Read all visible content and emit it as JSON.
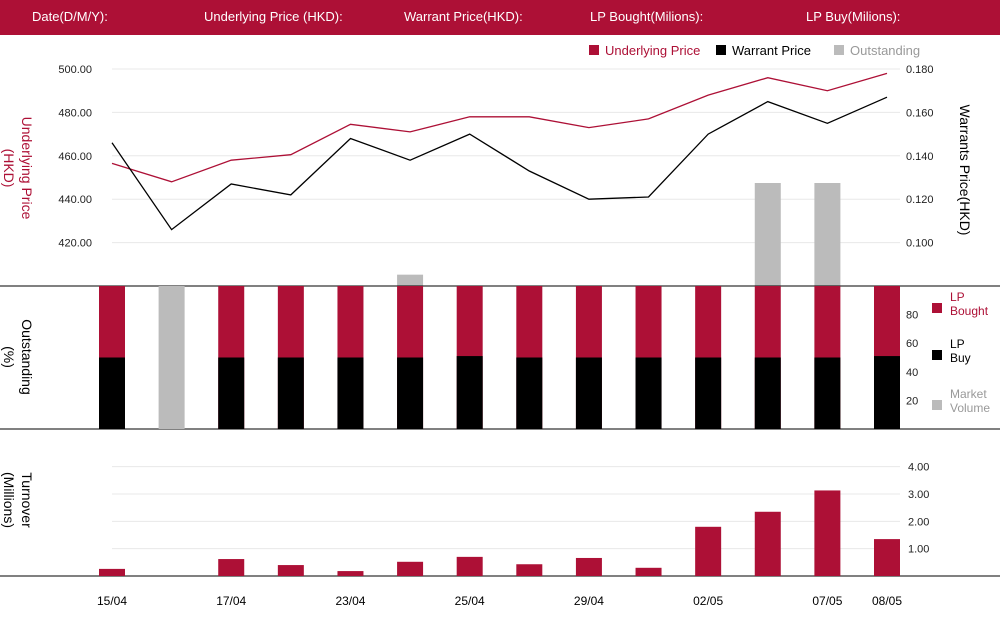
{
  "header": {
    "date_label": "Date(D/M/Y):",
    "underlying_label": "Underlying Price (HKD):",
    "warrant_label": "Warrant  Price(HKD):",
    "lp_bought_label": "LP Bought(Milions):",
    "lp_buy_label": "LP Buy(Milions):"
  },
  "colors": {
    "brand": "#ad1036",
    "warrant": "#000000",
    "outstanding": "#bbbbbb"
  },
  "chart_data": [
    {
      "type": "line",
      "legend": [
        "Underlying Price",
        "Warrant  Price",
        "Outstanding"
      ],
      "legend_position": "top-right",
      "ylabel_left": "Underlying Price (HKD)",
      "ylabel_right": "Warrants  Price(HKD)",
      "left_ticks": [
        "500.00",
        "480.00",
        "460.00",
        "440.00",
        "420.00"
      ],
      "right_ticks": [
        "0.180",
        "0.160",
        "0.140",
        "0.120",
        "0.100"
      ],
      "ylim_left": [
        400,
        506
      ],
      "ylim_right": [
        0.08,
        0.186
      ],
      "series": [
        {
          "name": "Underlying Price",
          "axis": "left",
          "values": [
            456.5,
            448,
            458,
            460.5,
            474.5,
            471,
            478,
            478,
            473,
            477,
            488,
            496,
            490,
            498
          ]
        },
        {
          "name": "Warrant  Price",
          "axis": "right",
          "values": [
            0.146,
            0.106,
            0.127,
            0.122,
            0.148,
            0.138,
            0.15,
            0.133,
            0.12,
            0.121,
            0.15,
            0.165,
            0.155,
            0.167
          ]
        },
        {
          "name": "Outstanding",
          "kind": "bar",
          "values": [
            0,
            0,
            0,
            0,
            0,
            5.5,
            0,
            0,
            0,
            0,
            0,
            50,
            50,
            0
          ]
        }
      ]
    },
    {
      "type": "bar",
      "ylabel": "Outstanding (%)",
      "y_ticks": [
        "80",
        "60",
        "40",
        "20"
      ],
      "ylim": [
        0,
        100
      ],
      "legend": [
        "LP Bought",
        "LP Buy",
        "Market Volume"
      ],
      "legend_position": "right",
      "series": [
        {
          "name": "LP Bought",
          "values": [
            100,
            0,
            100,
            100,
            100,
            100,
            100,
            100,
            100,
            100,
            100,
            100,
            100,
            100
          ]
        },
        {
          "name": "LP Buy",
          "values": [
            50,
            0,
            50,
            50,
            50,
            50,
            51,
            50,
            50,
            50,
            50,
            50,
            50,
            51
          ]
        },
        {
          "name": "Market Volume",
          "values": [
            0,
            100,
            0,
            0,
            0,
            0,
            0,
            0,
            0,
            0,
            0,
            0,
            0,
            0
          ]
        }
      ]
    },
    {
      "type": "bar",
      "ylabel": "Turnover (Millions)",
      "y_ticks": [
        "4.00",
        "3.00",
        "2.00",
        "1.00"
      ],
      "ylim": [
        0,
        4.5
      ],
      "series": [
        {
          "name": "Turnover",
          "values": [
            0.26,
            0,
            0.62,
            0.4,
            0.18,
            0.52,
            0.7,
            0.43,
            0.66,
            0.3,
            1.8,
            2.35,
            3.13,
            1.35
          ]
        }
      ]
    }
  ],
  "x_labels": [
    "15/04",
    "17/04",
    "23/04",
    "25/04",
    "29/04",
    "02/05",
    "07/05",
    "08/05"
  ],
  "x_label_index": [
    0,
    2,
    4,
    6,
    8,
    10,
    12,
    13
  ]
}
